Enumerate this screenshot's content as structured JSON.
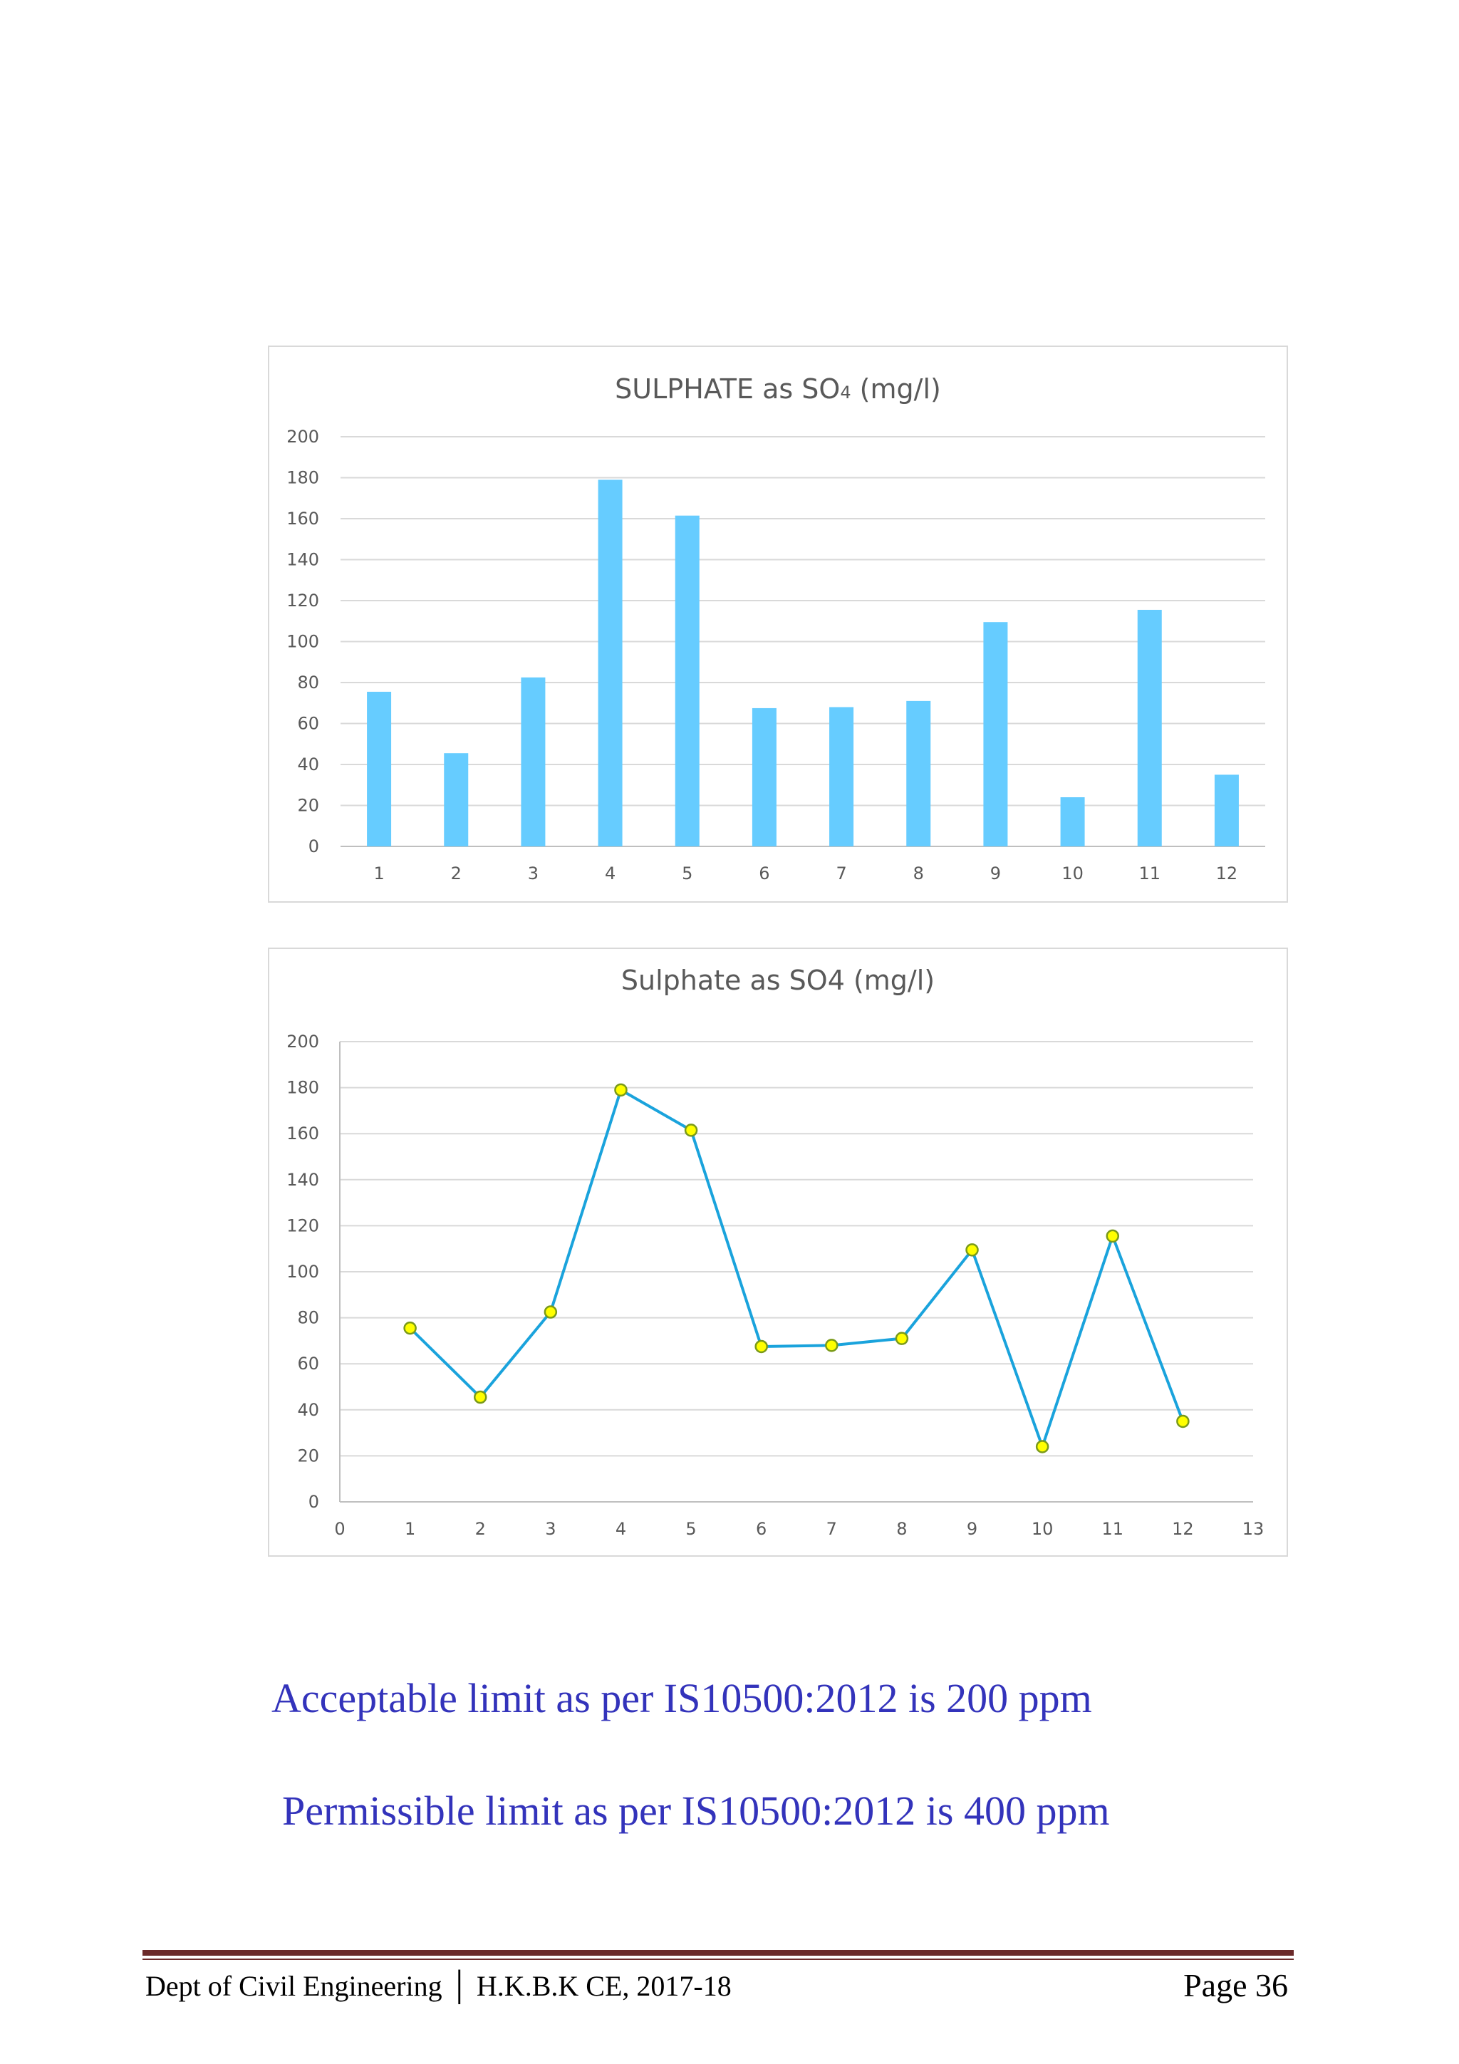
{
  "chart_data": [
    {
      "type": "bar",
      "title_main": "SULPHATE as SO",
      "title_sub": "4",
      "title_tail": " (mg/l)",
      "categories": [
        "1",
        "2",
        "3",
        "4",
        "5",
        "6",
        "7",
        "8",
        "9",
        "10",
        "11",
        "12"
      ],
      "values": [
        75.5,
        45.5,
        82.5,
        179,
        161.5,
        67.5,
        68,
        71,
        109.5,
        24,
        115.5,
        35
      ],
      "ylim": [
        0,
        200
      ],
      "yticks": [
        "0",
        "20",
        "40",
        "60",
        "80",
        "100",
        "120",
        "140",
        "160",
        "180",
        "200"
      ],
      "xlabel": "",
      "ylabel": "",
      "grid": true,
      "color": "#66ccff"
    },
    {
      "type": "scatter",
      "title": "Sulphate as SO4 (mg/l)",
      "x": [
        1,
        2,
        3,
        4,
        5,
        6,
        7,
        8,
        9,
        10,
        11,
        12
      ],
      "y": [
        75.5,
        45.5,
        82.5,
        179,
        161.5,
        67.5,
        68,
        71,
        109.5,
        24,
        115.5,
        35
      ],
      "xlim": [
        0,
        13
      ],
      "ylim": [
        0,
        200
      ],
      "xticks": [
        "0",
        "1",
        "2",
        "3",
        "4",
        "5",
        "6",
        "7",
        "8",
        "9",
        "10",
        "11",
        "12",
        "13"
      ],
      "yticks": [
        "0",
        "20",
        "40",
        "60",
        "80",
        "100",
        "120",
        "140",
        "160",
        "180",
        "200"
      ],
      "xlabel": "",
      "ylabel": "",
      "grid": true,
      "line_color": "#1aa3dc",
      "marker_fill": "#ffff00",
      "marker_edge": "#7a9a1a"
    }
  ],
  "notes": {
    "acceptable": "Acceptable limit as per IS10500:2012 is 200 ppm",
    "permissible": "Permissible limit as per IS10500:2012 is 400 ppm"
  },
  "footer": {
    "left": "Dept of Civil Engineering │ H.K.B.K CE, 2017-18",
    "right": "Page 36"
  }
}
